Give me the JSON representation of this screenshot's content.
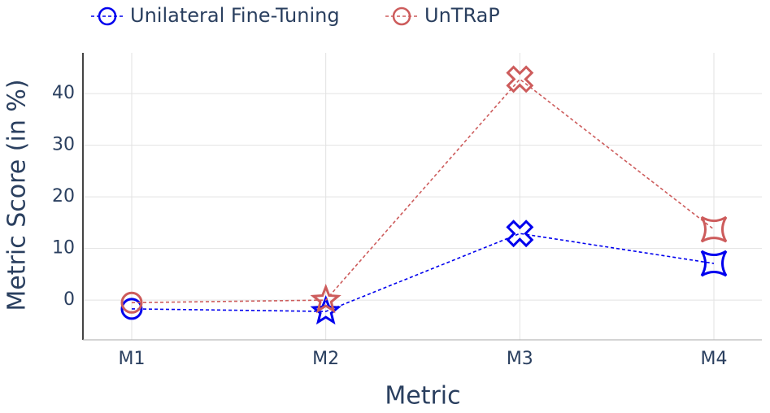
{
  "chart_data": {
    "type": "line",
    "x_label": "Metric",
    "y_label": "Metric Score (in %)",
    "categories": [
      "M1",
      "M2",
      "M3",
      "M4"
    ],
    "series": [
      {
        "name": "Unilateral Fine-Tuning",
        "color": "#0000ee",
        "values": [
          -1.7,
          -2.2,
          12.9,
          7.1
        ]
      },
      {
        "name": "UnTRaP",
        "color": "#cd5c5c",
        "values": [
          -0.5,
          0.0,
          42.8,
          13.7
        ]
      }
    ],
    "ylim": [
      -7.7,
      47.9
    ],
    "yticks": [
      0,
      10,
      20,
      30,
      40
    ],
    "grid": true,
    "legend": "top"
  }
}
